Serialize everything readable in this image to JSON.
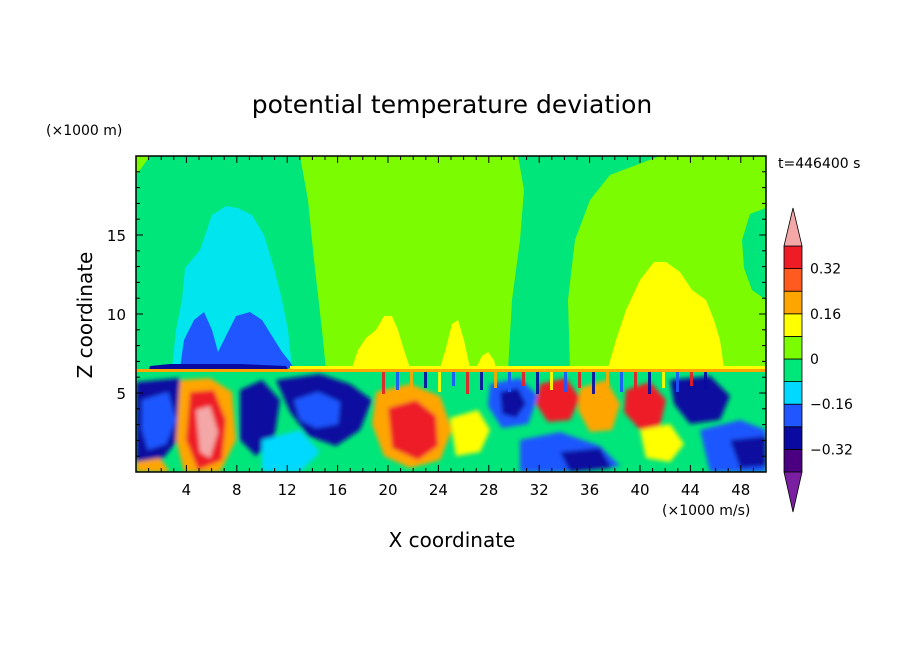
{
  "chart_data": {
    "type": "heatmap",
    "title": "potential temperature deviation",
    "xlabel": "X coordinate",
    "ylabel": "Z coordinate",
    "x_unit": "(×1000 m/s)",
    "y_unit": "(×1000 m)",
    "time_label": "t=446400 s",
    "x_ticks": [
      4,
      8,
      12,
      16,
      20,
      24,
      28,
      32,
      36,
      40,
      44,
      48
    ],
    "y_ticks": [
      5,
      10,
      15
    ],
    "xlim": [
      0,
      50
    ],
    "ylim": [
      0,
      20
    ],
    "colorbar": {
      "labels": [
        "0.32",
        "0.16",
        "0",
        "−0.16",
        "−0.32"
      ],
      "label_values": [
        0.32,
        0.16,
        0,
        -0.16,
        -0.32
      ],
      "levels": [
        -0.4,
        -0.32,
        -0.24,
        -0.16,
        -0.08,
        0,
        0.08,
        0.16,
        0.24,
        0.32,
        0.4
      ],
      "under_color": "#7a1fa2",
      "over_color": "#f4a7a7",
      "colors": [
        "#4b0082",
        "#0a0aa0",
        "#1f56ff",
        "#00d9ff",
        "#00e67a",
        "#7cfc00",
        "#ffff00",
        "#ffa500",
        "#ff5a1f",
        "#ee1c25"
      ]
    },
    "regions": [
      {
        "name": "upper background",
        "level": 0.04
      },
      {
        "name": "left cyan column",
        "level": -0.12
      },
      {
        "name": "left blue lobes",
        "level": -0.2
      },
      {
        "name": "left green band",
        "level": -0.04
      },
      {
        "name": "yellow plume right",
        "level": 0.12
      },
      {
        "name": "yellow patches middle",
        "level": 0.12
      },
      {
        "name": "tropopause band",
        "level": 0.16
      },
      {
        "name": "lower layer mixed",
        "level": -0.04
      }
    ]
  }
}
